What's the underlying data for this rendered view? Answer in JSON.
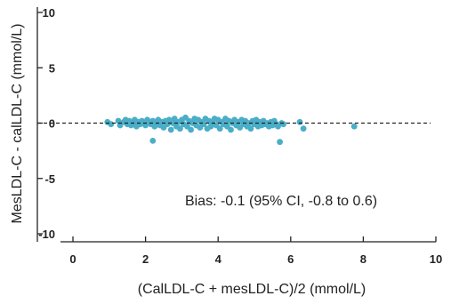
{
  "chart_data": {
    "type": "scatter",
    "xlabel": "(CalLDL-C + mesLDL-C)/2 (mmol/L)",
    "ylabel": "MesLDL-C - calLDL-C (mmol/L)",
    "xlim": [
      0,
      10
    ],
    "ylim": [
      -10,
      10
    ],
    "x_ticks": [
      "0",
      "2",
      "4",
      "6",
      "8",
      "10"
    ],
    "y_ticks": [
      "10",
      "5",
      "0",
      "-5",
      "-10"
    ],
    "bias_line": 0,
    "annotation": "Bias: -0.1 (95% CI, -0.8 to 0.6)",
    "grid": false,
    "point_color": "#4aaec8",
    "points": [
      [
        0.95,
        0.1
      ],
      [
        1.05,
        -0.1
      ],
      [
        1.25,
        0.2
      ],
      [
        1.3,
        -0.2
      ],
      [
        1.4,
        0.1
      ],
      [
        1.45,
        0.3
      ],
      [
        1.5,
        -0.1
      ],
      [
        1.55,
        0.2
      ],
      [
        1.6,
        -0.2
      ],
      [
        1.65,
        0.0
      ],
      [
        1.7,
        0.3
      ],
      [
        1.75,
        -0.3
      ],
      [
        1.8,
        0.1
      ],
      [
        1.85,
        -0.1
      ],
      [
        1.9,
        0.2
      ],
      [
        1.95,
        0.0
      ],
      [
        2.0,
        -0.2
      ],
      [
        2.05,
        0.3
      ],
      [
        2.1,
        0.1
      ],
      [
        2.15,
        -0.1
      ],
      [
        2.2,
        -1.6
      ],
      [
        2.2,
        0.2
      ],
      [
        2.25,
        -0.3
      ],
      [
        2.3,
        0.0
      ],
      [
        2.35,
        0.3
      ],
      [
        2.4,
        -0.2
      ],
      [
        2.45,
        0.1
      ],
      [
        2.5,
        -0.4
      ],
      [
        2.55,
        0.2
      ],
      [
        2.6,
        -0.1
      ],
      [
        2.65,
        0.3
      ],
      [
        2.7,
        -0.6
      ],
      [
        2.75,
        0.0
      ],
      [
        2.8,
        0.4
      ],
      [
        2.85,
        -0.3
      ],
      [
        2.9,
        0.1
      ],
      [
        2.95,
        -0.5
      ],
      [
        3.0,
        0.3
      ],
      [
        3.05,
        -0.1
      ],
      [
        3.1,
        0.5
      ],
      [
        3.15,
        -0.3
      ],
      [
        3.2,
        0.2
      ],
      [
        3.25,
        -0.6
      ],
      [
        3.3,
        0.0
      ],
      [
        3.35,
        0.4
      ],
      [
        3.4,
        -0.2
      ],
      [
        3.45,
        0.3
      ],
      [
        3.5,
        -0.4
      ],
      [
        3.55,
        0.1
      ],
      [
        3.6,
        -0.1
      ],
      [
        3.65,
        0.4
      ],
      [
        3.7,
        -0.5
      ],
      [
        3.75,
        0.2
      ],
      [
        3.8,
        -0.3
      ],
      [
        3.85,
        0.0
      ],
      [
        3.9,
        0.4
      ],
      [
        3.95,
        -0.2
      ],
      [
        4.0,
        0.3
      ],
      [
        4.05,
        -0.5
      ],
      [
        4.1,
        0.1
      ],
      [
        4.15,
        -0.1
      ],
      [
        4.2,
        0.4
      ],
      [
        4.25,
        -0.3
      ],
      [
        4.3,
        0.2
      ],
      [
        4.35,
        -0.6
      ],
      [
        4.4,
        0.0
      ],
      [
        4.45,
        0.3
      ],
      [
        4.5,
        -0.2
      ],
      [
        4.55,
        0.1
      ],
      [
        4.6,
        -0.4
      ],
      [
        4.65,
        0.3
      ],
      [
        4.7,
        -0.1
      ],
      [
        4.75,
        0.2
      ],
      [
        4.8,
        -0.3
      ],
      [
        4.85,
        0.0
      ],
      [
        4.9,
        -0.5
      ],
      [
        4.95,
        0.2
      ],
      [
        5.0,
        -0.1
      ],
      [
        5.05,
        0.3
      ],
      [
        5.1,
        -0.3
      ],
      [
        5.15,
        0.1
      ],
      [
        5.2,
        -0.2
      ],
      [
        5.25,
        0.2
      ],
      [
        5.3,
        -0.1
      ],
      [
        5.35,
        0.0
      ],
      [
        5.4,
        -0.3
      ],
      [
        5.45,
        0.1
      ],
      [
        5.5,
        -0.2
      ],
      [
        5.55,
        0.2
      ],
      [
        5.6,
        -0.1
      ],
      [
        5.65,
        -0.3
      ],
      [
        5.7,
        -1.7
      ],
      [
        5.75,
        0.0
      ],
      [
        5.8,
        -0.1
      ],
      [
        6.25,
        0.1
      ],
      [
        6.35,
        -0.5
      ],
      [
        7.75,
        -0.3
      ]
    ]
  }
}
